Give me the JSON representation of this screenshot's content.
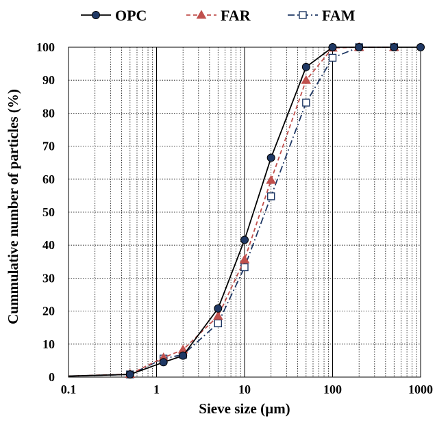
{
  "chart_data": {
    "type": "line",
    "xscale": "log",
    "xlim": [
      0.1,
      1000
    ],
    "ylim": [
      0,
      100
    ],
    "xlabel": "Sieve size (µm)",
    "ylabel": "Cummulative number of particles (%)",
    "grid": true,
    "legend_position": "top",
    "x_ticks": [
      "0.1",
      "1",
      "10",
      "100",
      "1000"
    ],
    "y_ticks": [
      "0",
      "10",
      "20",
      "30",
      "40",
      "50",
      "60",
      "70",
      "80",
      "90",
      "100"
    ],
    "series": [
      {
        "name": "OPC",
        "color": "#000000",
        "dash": "solid",
        "marker": "circle",
        "marker_color": "#1F3864",
        "x": [
          0.1,
          0.5,
          1.2,
          2,
          5,
          10,
          20,
          50,
          100,
          200,
          500,
          1000
        ],
        "y": [
          0.3,
          0.8,
          4.5,
          6.5,
          20.8,
          41.6,
          66.5,
          94,
          100,
          100,
          100,
          100
        ]
      },
      {
        "name": "FAR",
        "color": "#C0504D",
        "dash": "dashed",
        "marker": "triangle",
        "marker_color": "#C0504D",
        "x": [
          0.1,
          0.5,
          1.2,
          2,
          5,
          10,
          20,
          50,
          100,
          200,
          500
        ],
        "y": [
          0.3,
          0.9,
          5.9,
          8.3,
          18.5,
          35.6,
          59.7,
          90,
          99.8,
          100,
          100
        ]
      },
      {
        "name": "FAM",
        "color": "#1F3864",
        "dash": "dashdot",
        "marker": "square",
        "marker_color": "#1F3864",
        "x": [
          0.1,
          0.5,
          1.2,
          2,
          5,
          10,
          20,
          50,
          100,
          200,
          500
        ],
        "y": [
          0.3,
          0.8,
          5.6,
          6.8,
          16.3,
          33.3,
          54.8,
          83.2,
          96.8,
          100,
          100
        ]
      }
    ]
  }
}
